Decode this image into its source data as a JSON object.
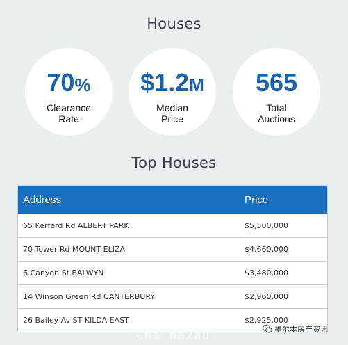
{
  "headings": {
    "houses": "Houses",
    "top_houses": "Top Houses"
  },
  "stats": [
    {
      "value": "70",
      "unit": "%",
      "label_line1": "Clearance",
      "label_line2": "Rate"
    },
    {
      "value": "$1.2",
      "unit": "M",
      "label_line1": "Median",
      "label_line2": "Price"
    },
    {
      "value": "565",
      "unit": "",
      "label_line1": "Total",
      "label_line2": "Auctions"
    }
  ],
  "table": {
    "columns": [
      "Address",
      "Price"
    ],
    "rows": [
      {
        "address": "65 Kerferd Rd ALBERT PARK",
        "price": "$5,500,000"
      },
      {
        "address": "70 Tower Rd MOUNT ELIZA",
        "price": "$4,660,000"
      },
      {
        "address": "6 Canyon St BALWYN",
        "price": "$3,480,000"
      },
      {
        "address": "14 Winson Green Rd CANTERBURY",
        "price": "$2,960,000"
      },
      {
        "address": "26 Bailey Av ST KILDA EAST",
        "price": "$2,925,000"
      }
    ]
  },
  "watermarks": {
    "site": "Chi na2au",
    "wechat_account": "墨尔本房产资讯"
  },
  "colors": {
    "accent": "#1a63a8",
    "header": "#1a6fbf",
    "background": "#e9eef1"
  },
  "icons": {
    "wechat": "wechat-icon"
  }
}
